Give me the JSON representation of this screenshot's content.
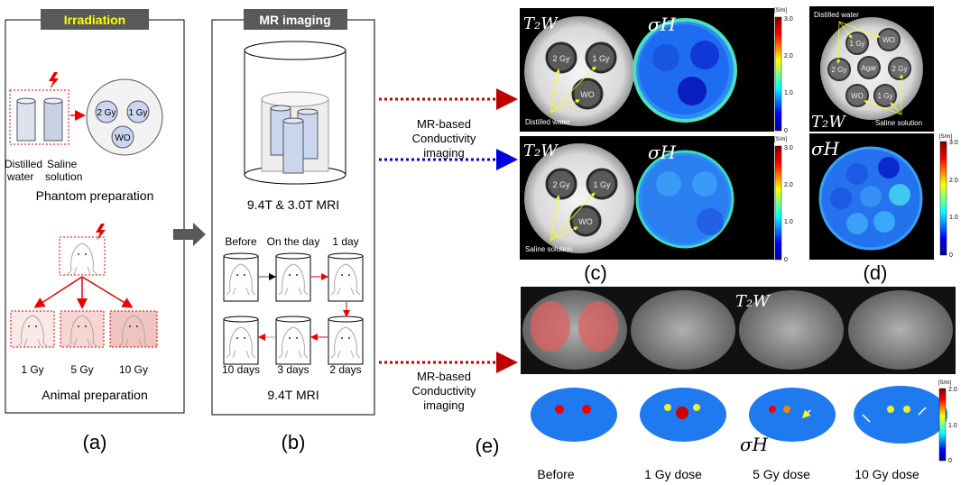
{
  "panel_a": {
    "title": "Irradiation",
    "distilled_label": [
      "Distilled",
      "water"
    ],
    "saline_label": [
      "Saline",
      "solution"
    ],
    "phantom_doses": [
      "2 Gy",
      "1 Gy",
      "WO"
    ],
    "phantom_caption": "Phantom preparation",
    "animal_doses": [
      "1 Gy",
      "5 Gy",
      "10 Gy"
    ],
    "animal_caption": "Animal preparation",
    "label": "(a)"
  },
  "panel_b": {
    "title": "MR imaging",
    "scanner_caption": "9.4T & 3.0T MRI",
    "timepoints": [
      "Before",
      "On the day",
      "1 day",
      "2 days",
      "3 days",
      "10 days"
    ],
    "mri_caption": "9.4T MRI",
    "label": "(b)"
  },
  "connectors": {
    "text1": [
      "MR-based",
      "Conductivity",
      "imaging"
    ],
    "text2": [
      "MR-based",
      "Conductivity",
      "imaging"
    ],
    "colors": {
      "red": "#c00000",
      "blue": "#0000e0"
    }
  },
  "panel_c": {
    "t2w_label": "T₂W",
    "sigma_label": "σH",
    "row1_annotation": "Distilled water",
    "row2_annotation": "Saline solution",
    "tubes": [
      "2 Gy",
      "1 Gy",
      "WO"
    ],
    "colorbar": {
      "unit": "[S/m]",
      "ticks": [
        "3.0",
        "2.0",
        "1.0",
        "0"
      ]
    },
    "label": "(c)"
  },
  "panel_d": {
    "top_annotation": "Distilled water",
    "bottom_annotation": "Saline solution",
    "tubes": [
      "1 Gy",
      "WO",
      "2 Gy",
      "Agar",
      "2 Gy",
      "WO",
      "1 Gy"
    ],
    "t2w_label": "T₂W",
    "sigma_label": "σH",
    "colorbar": {
      "unit": "[S/m]",
      "ticks": [
        "3.0",
        "2.0",
        "1.0",
        "0"
      ]
    },
    "label": "(d)"
  },
  "panel_e": {
    "t2w_label": "T₂W",
    "sigma_label": "σH",
    "columns": [
      "Before",
      "1 Gy dose",
      "5 Gy dose",
      "10 Gy dose"
    ],
    "colorbar": {
      "unit": "[S/m]",
      "ticks": [
        "2.0",
        "1.0",
        "0"
      ]
    },
    "label": "(e)"
  }
}
